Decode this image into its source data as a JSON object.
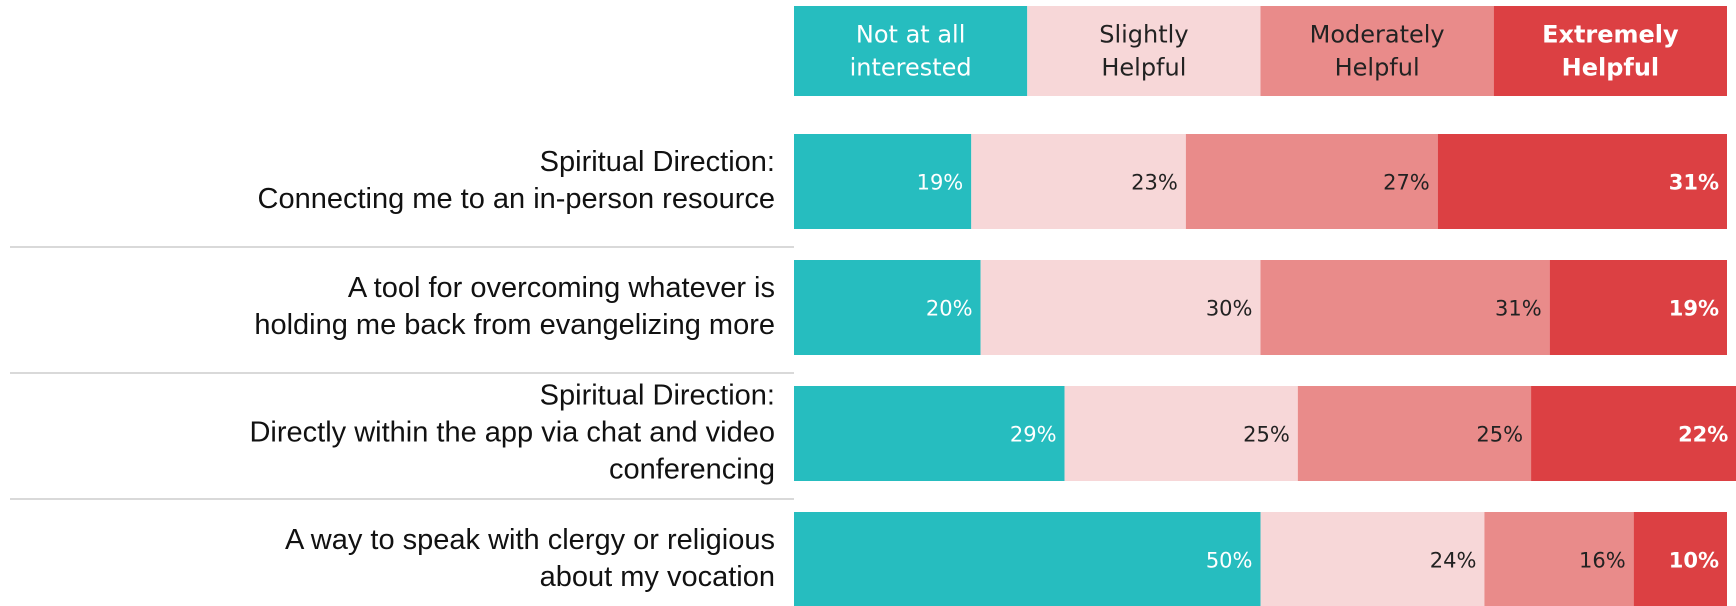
{
  "chart_data": {
    "type": "stacked_barh",
    "categories": [
      "Spiritual Direction:\nConnecting me to an in-person resource",
      "A tool for overcoming whatever is\nholding me back from evangelizing more",
      "Spiritual Direction:\nDirectly within the app via chat and video\nconferencing",
      "A way to speak with clergy or religious\nabout my vocation"
    ],
    "xlim": [
      0,
      100
    ],
    "series": [
      {
        "name": "Not at all\ninterested",
        "color": "#26bdbf",
        "text_color": "#ffffff",
        "bold": false,
        "values": [
          19,
          20,
          29,
          50
        ],
        "value_labels": [
          "19%",
          "20%",
          "29%",
          "50%"
        ]
      },
      {
        "name": "Slightly\nHelpful",
        "color": "#f7d7d8",
        "text_color": "#222222",
        "bold": false,
        "values": [
          23,
          30,
          25,
          24
        ],
        "value_labels": [
          "23%",
          "30%",
          "25%",
          "24%"
        ]
      },
      {
        "name": "Moderately\nHelpful",
        "color": "#e98b8a",
        "text_color": "#222222",
        "bold": false,
        "values": [
          27,
          31,
          25,
          16
        ],
        "value_labels": [
          "27%",
          "31%",
          "25%",
          "16%"
        ]
      },
      {
        "name": "Extremely\nHelpful",
        "color": "#dc4043",
        "text_color": "#ffffff",
        "bold": true,
        "values": [
          31,
          19,
          22,
          10
        ],
        "value_labels": [
          "31%",
          "19%",
          "22%",
          "10%"
        ]
      }
    ]
  }
}
